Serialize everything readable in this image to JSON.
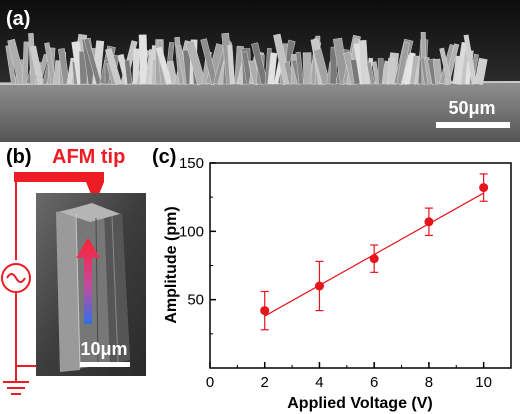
{
  "panel_a": {
    "label": "(a)",
    "scale_bar": "50μm"
  },
  "panel_b": {
    "label": "(b)",
    "tip_label": "AFM tip",
    "scale_bar": "10μm",
    "colors": {
      "circuit": "#ee1c24",
      "arrow_top": "#ff2030",
      "arrow_bottom": "#2f6fe6"
    }
  },
  "chart_data": {
    "label": "(c)",
    "type": "scatter",
    "xlabel": "Applied Voltage (V)",
    "ylabel": "Amplitude (pm)",
    "xlim": [
      0,
      11
    ],
    "ylim": [
      0,
      150
    ],
    "x_ticks": [
      "0",
      "2",
      "4",
      "6",
      "8",
      "10"
    ],
    "y_ticks": [
      "50",
      "100",
      "150"
    ],
    "x": [
      2,
      4,
      6,
      8,
      10
    ],
    "y": [
      42,
      60,
      80,
      107,
      132
    ],
    "yerr": [
      14,
      18,
      10,
      10,
      10
    ],
    "fit": {
      "x": [
        2,
        10
      ],
      "y": [
        38,
        128
      ]
    },
    "color": "#e8141c"
  }
}
